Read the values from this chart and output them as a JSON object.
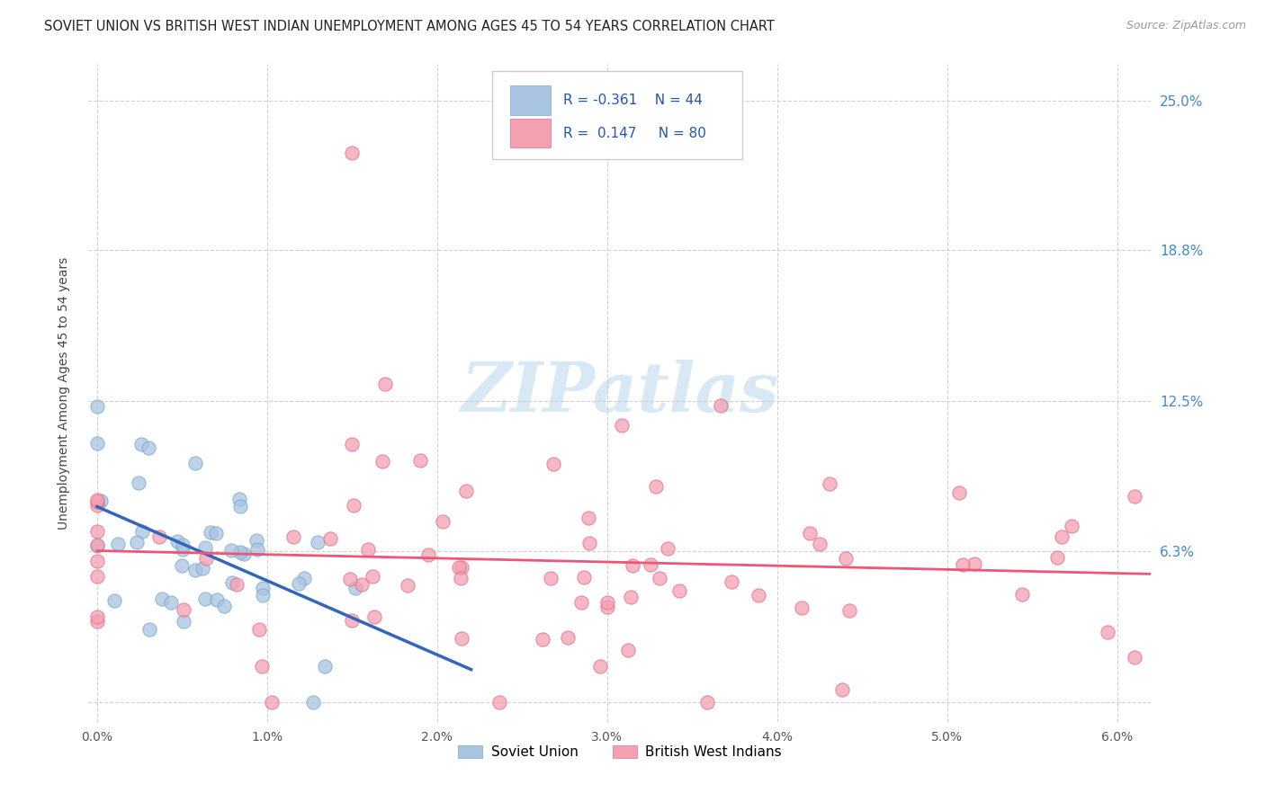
{
  "title": "SOVIET UNION VS BRITISH WEST INDIAN UNEMPLOYMENT AMONG AGES 45 TO 54 YEARS CORRELATION CHART",
  "source": "Source: ZipAtlas.com",
  "ylabel": "Unemployment Among Ages 45 to 54 years",
  "xlim": [
    -0.0005,
    0.062
  ],
  "ylim": [
    -0.008,
    0.265
  ],
  "xticks": [
    0.0,
    0.01,
    0.02,
    0.03,
    0.04,
    0.05,
    0.06
  ],
  "xlabels": [
    "0.0%",
    "1.0%",
    "2.0%",
    "3.0%",
    "4.0%",
    "5.0%",
    "6.0%"
  ],
  "yticks": [
    0.0,
    0.063,
    0.125,
    0.188,
    0.25
  ],
  "ylabels": [
    "",
    "6.3%",
    "12.5%",
    "18.8%",
    "25.0%"
  ],
  "soviet_color": "#a8c4e0",
  "soviet_edge": "#7aaacf",
  "bwi_color": "#f4a0b0",
  "bwi_edge": "#e07090",
  "soviet_line_color": "#3366bb",
  "bwi_line_color": "#ee5577",
  "right_tick_color": "#4488cc",
  "watermark_color": "#d8e8f4",
  "legend_R1": "-0.361",
  "legend_N1": "44",
  "legend_R2": "0.147",
  "legend_N2": "80",
  "bottom_legend_labels": [
    "Soviet Union",
    "British West Indians"
  ]
}
